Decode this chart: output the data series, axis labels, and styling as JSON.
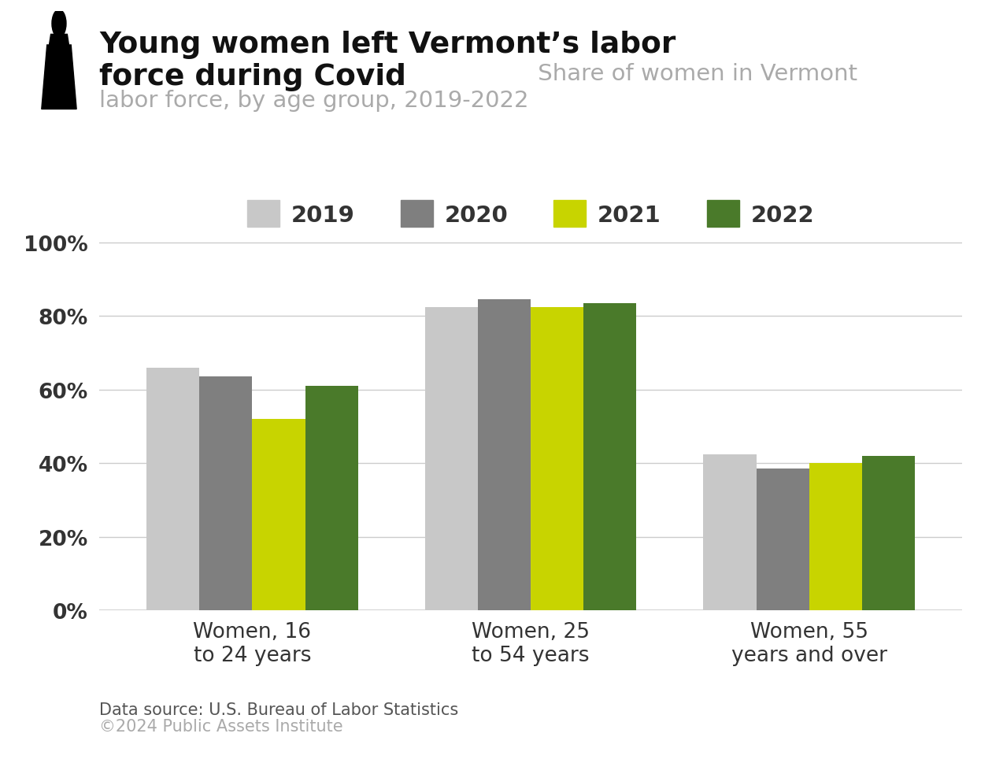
{
  "title_line1_bold": "Young women left Vermont’s labor",
  "title_line2_bold": "force during Covid",
  "title_line2_subtitle": " Share of women in Vermont",
  "title_line3_subtitle": "labor force, by age group, 2019-2022",
  "categories": [
    "Women, 16\nto 24 years",
    "Women, 25\nto 54 years",
    "Women, 55\nyears and over"
  ],
  "years": [
    "2019",
    "2020",
    "2021",
    "2022"
  ],
  "values": [
    [
      0.66,
      0.635,
      0.52,
      0.61
    ],
    [
      0.825,
      0.845,
      0.825,
      0.835
    ],
    [
      0.425,
      0.385,
      0.4,
      0.42
    ]
  ],
  "bar_colors": [
    "#c8c8c8",
    "#7f7f7f",
    "#c8d400",
    "#4a7a2a"
  ],
  "ylim": [
    0,
    1.08
  ],
  "yticks": [
    0.0,
    0.2,
    0.4,
    0.6,
    0.8,
    1.0
  ],
  "ytick_labels": [
    "0%",
    "20%",
    "40%",
    "60%",
    "80%",
    "100%"
  ],
  "legend_labels": [
    "2019",
    "2020",
    "2021",
    "2022"
  ],
  "data_source": "Data source: U.S. Bureau of Labor Statistics",
  "copyright": "©2024 Public Assets Institute",
  "background_color": "#ffffff",
  "grid_color": "#cccccc",
  "title_color": "#111111",
  "subtitle_color": "#aaaaaa",
  "axis_label_color": "#333333",
  "footer_color_source": "#555555",
  "footer_color_copy": "#aaaaaa"
}
